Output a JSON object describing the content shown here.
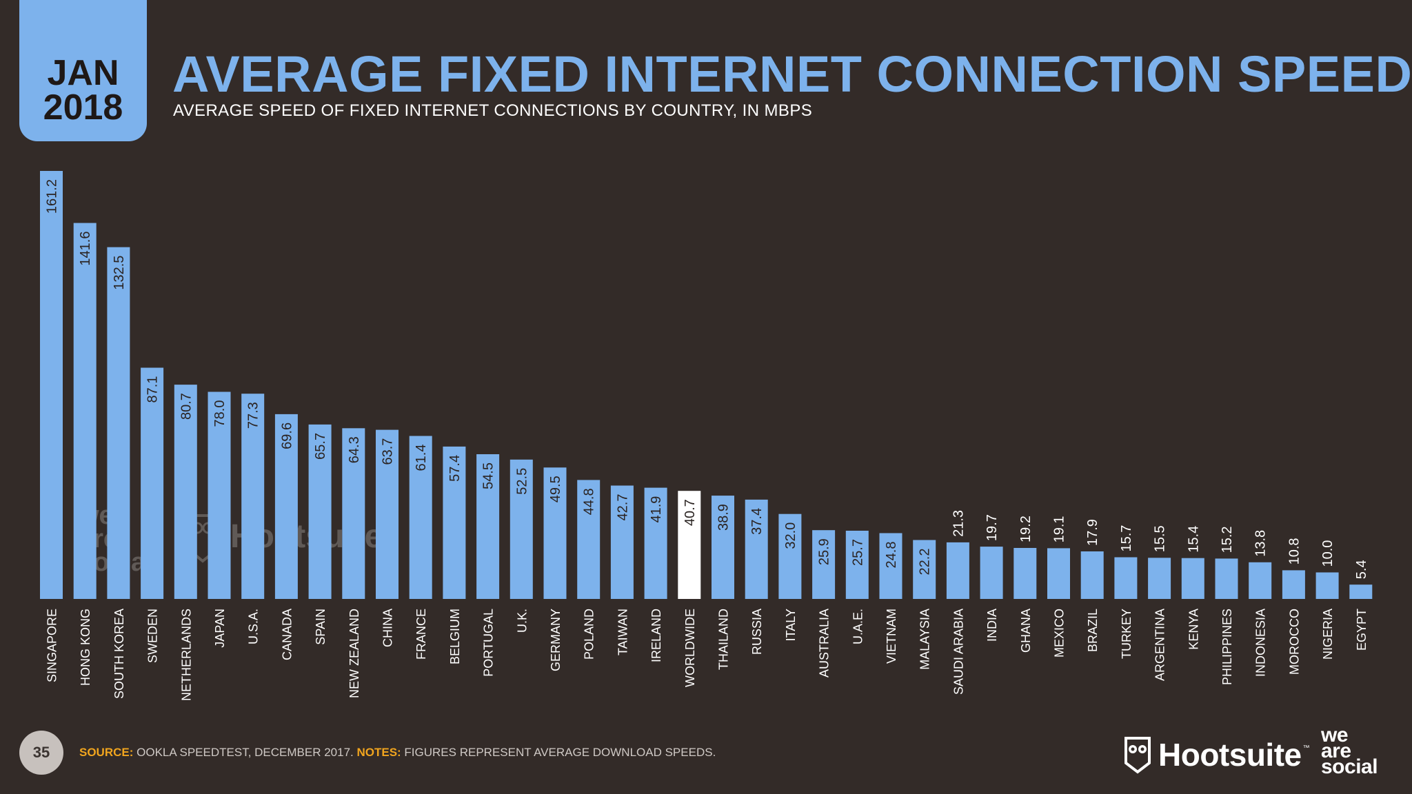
{
  "header": {
    "month": "JAN",
    "year": "2018",
    "title": "AVERAGE FIXED INTERNET CONNECTION SPEEDS",
    "subtitle": "AVERAGE SPEED OF FIXED INTERNET CONNECTIONS BY COUNTRY, IN MBPS"
  },
  "colors": {
    "background": "#332b28",
    "bar": "#7db2ec",
    "highlight_bar": "#ffffff",
    "source_label": "#f1a51e"
  },
  "chart_data": {
    "type": "bar",
    "title": "AVERAGE FIXED INTERNET CONNECTION SPEEDS",
    "subtitle": "AVERAGE SPEED OF FIXED INTERNET CONNECTIONS BY COUNTRY, IN MBPS",
    "xlabel": "",
    "ylabel": "",
    "ylim": [
      0,
      161.2
    ],
    "grid": false,
    "highlight": "WORLDWIDE",
    "categories": [
      "SINGAPORE",
      "HONG KONG",
      "SOUTH KOREA",
      "SWEDEN",
      "NETHERLANDS",
      "JAPAN",
      "U.S.A.",
      "CANADA",
      "SPAIN",
      "NEW ZEALAND",
      "CHINA",
      "FRANCE",
      "BELGIUM",
      "PORTUGAL",
      "U.K.",
      "GERMANY",
      "POLAND",
      "TAIWAN",
      "IRELAND",
      "WORLDWIDE",
      "THAILAND",
      "RUSSIA",
      "ITALY",
      "AUSTRALIA",
      "U.A.E.",
      "VIETNAM",
      "MALAYSIA",
      "SAUDI ARABIA",
      "INDIA",
      "GHANA",
      "MEXICO",
      "BRAZIL",
      "TURKEY",
      "ARGENTINA",
      "KENYA",
      "PHILIPPINES",
      "INDONESIA",
      "MOROCCO",
      "NIGERIA",
      "EGYPT"
    ],
    "values": [
      161.2,
      141.6,
      132.5,
      87.1,
      80.7,
      78.0,
      77.3,
      69.6,
      65.7,
      64.3,
      63.7,
      61.4,
      57.4,
      54.5,
      52.5,
      49.5,
      44.8,
      42.7,
      41.9,
      40.7,
      38.9,
      37.4,
      32.0,
      25.9,
      25.7,
      24.8,
      22.2,
      21.3,
      19.7,
      19.2,
      19.1,
      17.9,
      15.7,
      15.5,
      15.4,
      15.2,
      13.8,
      10.8,
      10.0,
      5.4
    ],
    "value_labels": [
      "161.2",
      "141.6",
      "132.5",
      "87.1",
      "80.7",
      "78.0",
      "77.3",
      "69.6",
      "65.7",
      "64.3",
      "63.7",
      "61.4",
      "57.4",
      "54.5",
      "52.5",
      "49.5",
      "44.8",
      "42.7",
      "41.9",
      "40.7",
      "38.9",
      "37.4",
      "32.0",
      "25.9",
      "25.7",
      "24.8",
      "22.2",
      "21.3",
      "19.7",
      "19.2",
      "19.1",
      "17.9",
      "15.7",
      "15.5",
      "15.4",
      "15.2",
      "13.8",
      "10.8",
      "10.0",
      "5.4"
    ]
  },
  "footer": {
    "page_number": "35",
    "source_label": "SOURCE:",
    "source_text": " OOKLA SPEEDTEST, DECEMBER 2017. ",
    "notes_label": "NOTES:",
    "notes_text": " FIGURES REPRESENT AVERAGE DOWNLOAD SPEEDS."
  },
  "logos": {
    "hootsuite": "Hootsuite",
    "hootsuite_tm": "™",
    "we_are_social": [
      "we",
      "are",
      "social"
    ],
    "hootsuite_icon": "owl-icon"
  }
}
